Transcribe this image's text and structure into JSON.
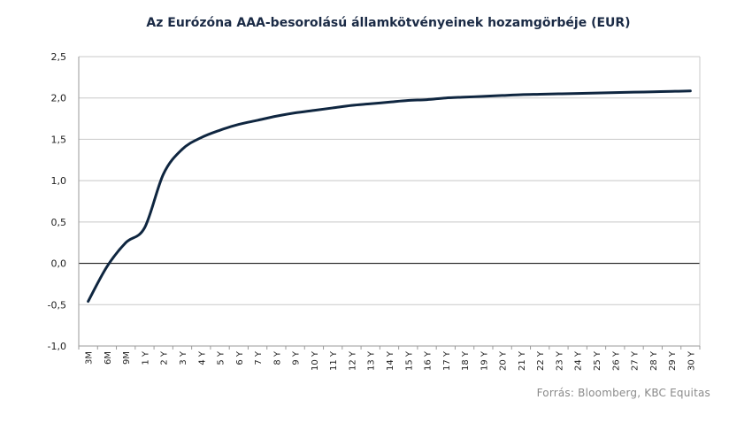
{
  "chart_data": {
    "type": "line",
    "title": "Az Eurózóna AAA-besorolású államkötvényeinek hozamgörbéje (EUR)",
    "xlabel": "",
    "ylabel": "",
    "categories": [
      "3M",
      "6M",
      "9M",
      "1 Y",
      "2 Y",
      "3 Y",
      "4 Y",
      "5 Y",
      "6 Y",
      "7 Y",
      "8 Y",
      "9 Y",
      "10 Y",
      "11 Y",
      "12 Y",
      "13 Y",
      "14 Y",
      "15 Y",
      "16 Y",
      "17 Y",
      "18 Y",
      "19 Y",
      "20 Y",
      "21 Y",
      "22 Y",
      "23 Y",
      "24 Y",
      "25 Y",
      "26 Y",
      "27 Y",
      "28 Y",
      "29 Y",
      "30 Y"
    ],
    "y_tick_labels": [
      "-1,0",
      "-0,5",
      "0,0",
      "0,5",
      "1,0",
      "1,5",
      "2,0",
      "2,5"
    ],
    "ylim": [
      -1.0,
      2.5
    ],
    "grid": true,
    "color": "#0f2640",
    "series": [
      {
        "values": [
          -0.46,
          -0.04,
          0.25,
          0.43,
          1.08,
          1.38,
          1.52,
          1.61,
          1.68,
          1.73,
          1.78,
          1.82,
          1.85,
          1.88,
          1.91,
          1.93,
          1.95,
          1.97,
          1.98,
          2.0,
          2.01,
          2.02,
          2.03,
          2.04,
          2.045,
          2.05,
          2.055,
          2.06,
          2.065,
          2.07,
          2.075,
          2.08,
          2.085
        ]
      }
    ]
  },
  "source": "Forrás: Bloomberg, KBC Equitas"
}
